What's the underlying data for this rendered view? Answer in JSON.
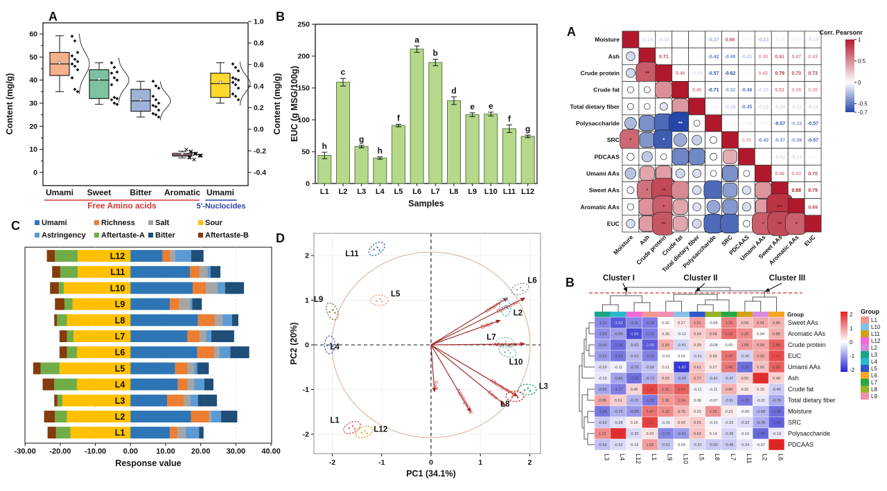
{
  "chart_data": [
    {
      "type": "boxplot",
      "panel_label": "A",
      "ylabel_left": "Content (mg/g)",
      "ylabel_right": "Content (mg/g)",
      "y_left_ticks": [
        0,
        10,
        20,
        30,
        40,
        50,
        60
      ],
      "y_left_lim": [
        0,
        60
      ],
      "y_right_ticks": [
        "1.0",
        "0.8",
        "0.6",
        "0.4",
        "0.2",
        "0.0",
        "-0.2",
        "-0.4"
      ],
      "y_right_lim": [
        -0.4,
        1.0
      ],
      "groups": [
        {
          "label": "Umami",
          "color": "#f5b08c",
          "low": 35,
          "q1": 42,
          "median": 47,
          "q3": 52,
          "high": 59.2,
          "marker": "dot",
          "points": [
            59,
            57,
            52,
            50.5,
            49,
            48,
            47,
            46,
            44.5,
            41,
            36,
            35
          ]
        },
        {
          "label": "Sweet",
          "color": "#7dc3a2",
          "low": 29.5,
          "q1": 32,
          "median": 40,
          "q3": 44.5,
          "high": 47.5,
          "marker": "dot",
          "points": [
            47.5,
            45.5,
            43.5,
            43,
            41,
            40,
            38,
            32.5,
            32,
            31.5,
            30,
            29.5
          ]
        },
        {
          "label": "Bitter",
          "color": "#9fb3d8",
          "low": 24,
          "q1": 26.5,
          "median": 31,
          "q3": 36,
          "high": 39.5,
          "marker": "dot",
          "points": [
            39.5,
            37.5,
            36.5,
            33,
            31.5,
            30,
            29,
            28.5,
            27,
            25.5,
            25,
            24
          ]
        },
        {
          "label": "Aromatic",
          "color": "#e9a0ae",
          "low": 6.3,
          "q1": 7.1,
          "median": 7.6,
          "q3": 8.3,
          "high": 9.2,
          "marker": "x",
          "points": [
            9,
            8.8,
            8.5,
            8.2,
            8,
            7.8,
            7.6,
            7.4,
            7.2,
            7,
            6.8,
            6.5
          ]
        },
        {
          "label": "Umami",
          "color": "#ffd92f",
          "low": 30,
          "q1": 32.5,
          "median": 38.5,
          "q3": 43,
          "high": 47.5,
          "marker": "dot",
          "points": [
            47,
            45.5,
            44,
            41,
            40.5,
            40,
            39,
            38,
            36.5,
            34,
            33,
            31.5
          ]
        }
      ],
      "group_axis": [
        {
          "label": "Free Amino acids",
          "color": "#d93333"
        },
        {
          "label": "5'-Nuclocides",
          "color": "#2b3faf"
        }
      ]
    },
    {
      "type": "bar",
      "panel_label": "B",
      "ylabel": "EUC (g MSG/100g)",
      "xlabel": "Samples",
      "ylim": [
        0,
        250
      ],
      "yticks": [
        0,
        50,
        100,
        150,
        200,
        250
      ],
      "categories": [
        "L1",
        "L2",
        "L3",
        "L4",
        "L5",
        "L6",
        "L7",
        "L8",
        "L9",
        "L10",
        "L11",
        "L12"
      ],
      "values": [
        44,
        159,
        58,
        40,
        91,
        211,
        190,
        130,
        108,
        109,
        86,
        74
      ],
      "errors": [
        5,
        6,
        2,
        2,
        2,
        5,
        5,
        6,
        3,
        3,
        6,
        2
      ],
      "letters": [
        "h",
        "c",
        "g",
        "h",
        "f",
        "a",
        "b",
        "d",
        "e",
        "e",
        "f",
        "g"
      ],
      "bar_color": "#b5d88b",
      "bar_border": "#5a7a3a"
    },
    {
      "type": "heatmap",
      "subtype": "correlation-matrix",
      "panel_label": "A",
      "legend_title": "Corr. Pearsonr",
      "legend_ticks": [
        "1",
        "0.5",
        "0",
        "-0.5",
        "-0.7"
      ],
      "pos_color": "#B2182B",
      "neg_color": "#2447A8",
      "labels": [
        "Moisture",
        "Ash",
        "Crude protein",
        "Crude fat",
        "Total dietary fiber",
        "Polysaccharide",
        "SRC",
        "PDCAAS",
        "Umami AAs",
        "Sweet AAs",
        "Aromatic AAs",
        "EUC"
      ],
      "values": [
        [
          1,
          -0.14,
          -0.15,
          0.04,
          0.03,
          -0.27,
          0.66,
          0.07,
          -0.23,
          -0.06,
          -0.05,
          -0.13
        ],
        [
          -0.14,
          1,
          0.71,
          0.03,
          0.02,
          -0.42,
          -0.4,
          -0.21,
          0.38,
          0.61,
          0.47,
          0.43
        ],
        [
          -0.15,
          0.71,
          1,
          0.48,
          -0.09,
          -0.57,
          -0.62,
          0.02,
          0.42,
          0.79,
          0.7,
          0.73
        ],
        [
          0.04,
          0.03,
          0.48,
          1,
          0.45,
          -0.71,
          -0.32,
          -0.46,
          -0.15,
          0.51,
          0.39,
          0.38
        ],
        [
          0.03,
          0.02,
          -0.09,
          0.45,
          1,
          -0.03,
          -0.18,
          -0.45,
          -0.12,
          -0.13,
          -0.11,
          -0.14
        ],
        [
          -0.27,
          -0.42,
          -0.57,
          -0.71,
          -0.03,
          1,
          0.06,
          -0.06,
          -0.03,
          -0.57,
          -0.33,
          -0.57
        ],
        [
          0.66,
          -0.4,
          -0.62,
          -0.32,
          -0.18,
          0.06,
          1,
          0.35,
          -0.42,
          -0.37,
          -0.39,
          -0.57
        ],
        [
          0.07,
          -0.21,
          0.02,
          -0.46,
          -0.45,
          -0.06,
          0.35,
          1,
          0.03,
          -0.12,
          -0.13,
          0.05
        ],
        [
          -0.23,
          0.38,
          0.42,
          -0.15,
          -0.12,
          -0.03,
          -0.42,
          0.03,
          1,
          0.46,
          0.43,
          0.7
        ],
        [
          -0.06,
          0.61,
          0.79,
          0.51,
          -0.13,
          -0.57,
          -0.37,
          -0.12,
          0.46,
          1,
          0.88,
          0.79
        ],
        [
          -0.05,
          0.47,
          0.7,
          0.39,
          -0.11,
          -0.33,
          -0.39,
          -0.13,
          0.43,
          0.88,
          1,
          0.69
        ],
        [
          -0.13,
          0.43,
          0.73,
          0.38,
          -0.14,
          -0.57,
          -0.57,
          0.05,
          0.7,
          0.79,
          0.69,
          1
        ]
      ],
      "sig": {
        "2|1": "**",
        "5|3": "**",
        "6|0": "*",
        "6|2": "*",
        "9|1": "*",
        "9|2": "**",
        "10|2": "*",
        "10|9": "***",
        "11|2": "**",
        "11|8": "*",
        "11|9": "**",
        "11|10": "*"
      }
    },
    {
      "type": "bar",
      "subtype": "stacked-horizontal",
      "panel_label": "C",
      "xlabel": "Response value",
      "xlim": [
        -30,
        40
      ],
      "xticks": [
        "-30.00",
        "-20.00",
        "-10.00",
        "0.00",
        "10.00",
        "20.00",
        "30.00",
        "40.00"
      ],
      "legend": [
        {
          "label": "Umami",
          "color": "#2e75b6"
        },
        {
          "label": "Richness",
          "color": "#ed7d31"
        },
        {
          "label": "Salt",
          "color": "#a5a5a5"
        },
        {
          "label": "Sour",
          "color": "#ffc000"
        },
        {
          "label": "Astringency",
          "color": "#5b9bd5"
        },
        {
          "label": "Aftertaste-A",
          "color": "#70ad47"
        },
        {
          "label": "Bitter",
          "color": "#1f4e79"
        },
        {
          "label": "Aftertaste-B",
          "color": "#843c0c"
        }
      ],
      "neg_order": [
        "Sour",
        "Aftertaste-A",
        "Aftertaste-B"
      ],
      "pos_order": [
        "Umami",
        "Richness",
        "Salt",
        "Astringency",
        "Bitter"
      ],
      "rows": [
        {
          "label": "L12",
          "neg": [
            15.0,
            6.5,
            2.3
          ],
          "pos": [
            9.1,
            2.2,
            1.4,
            4.6,
            3.5
          ]
        },
        {
          "label": "L11",
          "neg": [
            15.0,
            5.0,
            2.3
          ],
          "pos": [
            16.9,
            2.8,
            2.2,
            0.9,
            2.8
          ]
        },
        {
          "label": "L10",
          "neg": [
            19.0,
            1.4,
            2.5
          ],
          "pos": [
            17.7,
            3.8,
            3.3,
            2.1,
            5.4
          ]
        },
        {
          "label": "L9",
          "neg": [
            16.5,
            2.3,
            2.7
          ],
          "pos": [
            11.2,
            2.7,
            3.1,
            0.6,
            2.7
          ]
        },
        {
          "label": "L8",
          "neg": [
            18.1,
            2.8,
            0.8
          ],
          "pos": [
            19.2,
            4.8,
            2.2,
            2.7,
            1.8
          ]
        },
        {
          "label": "L7",
          "neg": [
            16.2,
            1.9,
            2.1
          ],
          "pos": [
            16.2,
            3.5,
            1.8,
            1.5,
            6.5
          ]
        },
        {
          "label": "L6",
          "neg": [
            15.2,
            2.9,
            2.1
          ],
          "pos": [
            19.0,
            4.8,
            1.5,
            3.1,
            5.4
          ]
        },
        {
          "label": "L5",
          "neg": [
            20.2,
            5.4,
            2.1
          ],
          "pos": [
            12.7,
            3.5,
            1.9,
            0.9,
            3.3
          ]
        },
        {
          "label": "L4",
          "neg": [
            15.2,
            6.5,
            3.3
          ],
          "pos": [
            13.5,
            2.7,
            1.9,
            2.9,
            2.6
          ]
        },
        {
          "label": "L3",
          "neg": [
            19.4,
            1.4,
            0.9
          ],
          "pos": [
            10.4,
            4.8,
            1.9,
            2.1,
            5.4
          ]
        },
        {
          "label": "L2",
          "neg": [
            18.1,
            3.4,
            3.1
          ],
          "pos": [
            17.2,
            5.2,
            0.6,
            2.8,
            4.6
          ]
        },
        {
          "label": "L1",
          "neg": [
            17.1,
            4.1,
            2.4
          ],
          "pos": [
            11.2,
            2.2,
            2.3,
            3.8,
            1.3
          ]
        }
      ]
    },
    {
      "type": "scatter",
      "subtype": "pca-biplot",
      "panel_label": "D",
      "xlabel": "PC1 (34.1%)",
      "ylabel": "PC2 (20%)",
      "xticks": [
        -2,
        -1,
        0,
        1,
        2
      ],
      "yticks": [
        -2,
        -1,
        0,
        1,
        2
      ],
      "arrow_color": "#9e2a2a",
      "circle_color": "#d8b49c",
      "samples": [
        {
          "label": "L11",
          "x": -1.1,
          "y": 2.15,
          "lx": -1.6,
          "ly": 2.05,
          "rot": -35,
          "color": "#2e75b6"
        },
        {
          "label": "L5",
          "x": -1.05,
          "y": 1.0,
          "lx": -0.72,
          "ly": 1.15,
          "rot": 0,
          "color": "#f4a08a"
        },
        {
          "label": "L9",
          "x": -2.0,
          "y": 0.75,
          "lx": -2.28,
          "ly": 1.02,
          "rot": 65,
          "color": "#8a7355"
        },
        {
          "label": "L4",
          "x": -2.05,
          "y": 0.0,
          "lx": -1.95,
          "ly": -0.04,
          "rot": 90,
          "color": "#4472c4"
        },
        {
          "label": "L1",
          "x": -1.6,
          "y": -1.85,
          "lx": -1.95,
          "ly": -1.68,
          "rot": -25,
          "color": "#e05050"
        },
        {
          "label": "L12",
          "x": -1.35,
          "y": -1.95,
          "lx": -1.02,
          "ly": -1.88,
          "rot": -20,
          "color": "#e8a020"
        },
        {
          "label": "L6",
          "x": 1.8,
          "y": 1.25,
          "lx": 2.05,
          "ly": 1.45,
          "rot": -20,
          "color": "#9a9a9a"
        },
        {
          "label": "L2",
          "x": 1.5,
          "y": 0.85,
          "lx": 1.76,
          "ly": 0.72,
          "rot": 80,
          "color": "#40b8d8"
        },
        {
          "label": "L7",
          "x": 1.5,
          "y": 0.05,
          "lx": 1.22,
          "ly": 0.18,
          "rot": 0,
          "color": "#8fbf9f"
        },
        {
          "label": "L10",
          "x": 1.55,
          "y": -0.15,
          "lx": 1.72,
          "ly": -0.38,
          "rot": 20,
          "color": "#70b0b8"
        },
        {
          "label": "L3",
          "x": 1.95,
          "y": -1.0,
          "lx": 2.28,
          "ly": -0.92,
          "rot": 0,
          "color": "#20a080"
        },
        {
          "label": "L8",
          "x": 1.7,
          "y": -1.15,
          "lx": 1.5,
          "ly": -1.32,
          "rot": 0,
          "color": "#d03030"
        }
      ],
      "loadings": [
        {
          "label": "Umami",
          "x": 1.55,
          "y": 1.05
        },
        {
          "label": "Richness",
          "x": 1.9,
          "y": 1.05
        },
        {
          "label": "Bitter",
          "x": 1.4,
          "y": 0.55
        },
        {
          "label": "Aftertaste-A",
          "x": 1.9,
          "y": 0.02
        },
        {
          "label": "Salt",
          "x": 0.07,
          "y": -1.05
        },
        {
          "label": "Astringency",
          "x": 0.8,
          "y": -1.5
        },
        {
          "label": "Sour",
          "x": 1.5,
          "y": -1.35
        },
        {
          "label": "Aftertaste-B",
          "x": 1.75,
          "y": -1.15
        }
      ]
    },
    {
      "type": "heatmap",
      "subtype": "clustered-heatmap",
      "panel_label": "B",
      "cluster_labels": [
        "Cluster I",
        "Cluster II",
        "Cluster III"
      ],
      "group_strip_label": "Group",
      "legend_value_ticks": [
        "2",
        "1",
        "0",
        "-1",
        "-2"
      ],
      "legend_group_title": "Group",
      "legend_groups": [
        "L1",
        "L10",
        "L11",
        "L12",
        "L2",
        "L3",
        "L4",
        "L5",
        "L6",
        "L7",
        "L8",
        "L9"
      ],
      "group_colors": {
        "L1": "#f4978e",
        "L10": "#85c1e9",
        "L11": "#d1a01a",
        "L12": "#f468d8",
        "L2": "#d98ae0",
        "L3": "#17a589",
        "L4": "#2ab7ca",
        "L5": "#3056c8",
        "L6": "#f5a623",
        "L7": "#28a745",
        "L8": "#96b422",
        "L9": "#f48fb1"
      },
      "columns": [
        "L3",
        "L4",
        "L12",
        "L1",
        "L9",
        "L10",
        "L5",
        "L8",
        "L7",
        "L11",
        "L2",
        "L6"
      ],
      "rows": [
        "Sweet AAs",
        "Aromatic AAs",
        "Crude protein",
        "EUC",
        "Umami AAs",
        "Ash",
        "Crude fat",
        "Total dietary fiber",
        "Moisture",
        "SRC",
        "Polysaccharide",
        "PDCAAS"
      ],
      "values": [
        [
          -1.11,
          -1.53,
          -1.11,
          -1.19,
          0.02,
          0.27,
          1.01,
          -0.04,
          1.33,
          0.65,
          0.91,
          0.8
        ],
        [
          -1.03,
          -0.89,
          -1.65,
          -1.19,
          0.25,
          -0.12,
          0.54,
          0.68,
          1.53,
          1.2,
          0.04,
          0.85
        ],
        [
          -0.93,
          -1.34,
          -0.62,
          -1.5,
          0.83,
          -0.41,
          0.39,
          -0.08,
          0.0,
          1.08,
          0.93,
          1.65
        ],
        [
          -0.91,
          -1.24,
          -0.63,
          -1.16,
          -0.01,
          0.02,
          -0.31,
          0.39,
          1.47,
          -0.4,
          0.92,
          1.86
        ],
        [
          -0.29,
          -0.11,
          -0.79,
          -0.56,
          0.11,
          -1.82,
          0.61,
          0.27,
          1.4,
          -1.33,
          0.65,
          1.65
        ],
        [
          -0.19,
          -0.85,
          -1.32,
          -0.73,
          0.53,
          -0.69,
          0.77,
          -0.42,
          -0.47,
          0.5,
          2.18,
          0.48
        ],
        [
          -0.82,
          -1.17,
          0.46,
          1.92,
          1.31,
          1.67,
          -0.11,
          -0.11,
          0.8,
          0.25,
          0.25,
          -0.46
        ],
        [
          0.95,
          0.51,
          -0.7,
          -1.23,
          1.06,
          1.24,
          0.08,
          -0.07,
          -0.51,
          -1.23,
          -0.22,
          -0.78
        ],
        [
          -1.26,
          -0.73,
          -0.95,
          1.47,
          1.22,
          0.75,
          0.23,
          1.15,
          0.23,
          -0.06,
          -0.68,
          -1.35
        ],
        [
          -0.52,
          -0.28,
          0.18,
          1.98,
          -0.15,
          0.42,
          0.55,
          -0.1,
          -0.23,
          -0.32,
          -0.78,
          -1.45
        ],
        [
          1.21,
          2.17,
          -0.35,
          0.29,
          -1.11,
          -0.91,
          0.63,
          0.14,
          -0.39,
          -0.1,
          -1.39,
          -0.19
        ],
        [
          -0.56,
          -0.33,
          -0.16,
          1.02,
          -0.51,
          0.0,
          -0.37,
          -0.5,
          -0.49,
          -0.24,
          -0.07,
          2.29
        ]
      ]
    }
  ]
}
